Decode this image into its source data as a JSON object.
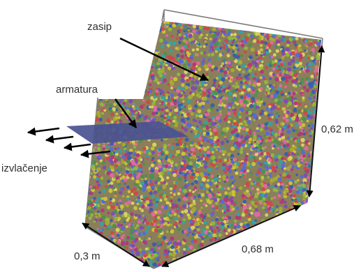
{
  "labels": {
    "backfill": "zasip",
    "reinforcement": "armatura",
    "pullout": "izvlačenje",
    "height": "0,62 m",
    "length": "0,68 m",
    "width": "0,3 m"
  },
  "particle_colors": [
    "#c9c23a",
    "#8fb83d",
    "#b03a7a",
    "#5a6bd0",
    "#d04848",
    "#3aa0a0",
    "#7d4fb0",
    "#d8d060",
    "#4f8f4f",
    "#a8a830",
    "#e06aa0",
    "#3d5fa8"
  ],
  "reinforcement_color": "#4a5290"
}
